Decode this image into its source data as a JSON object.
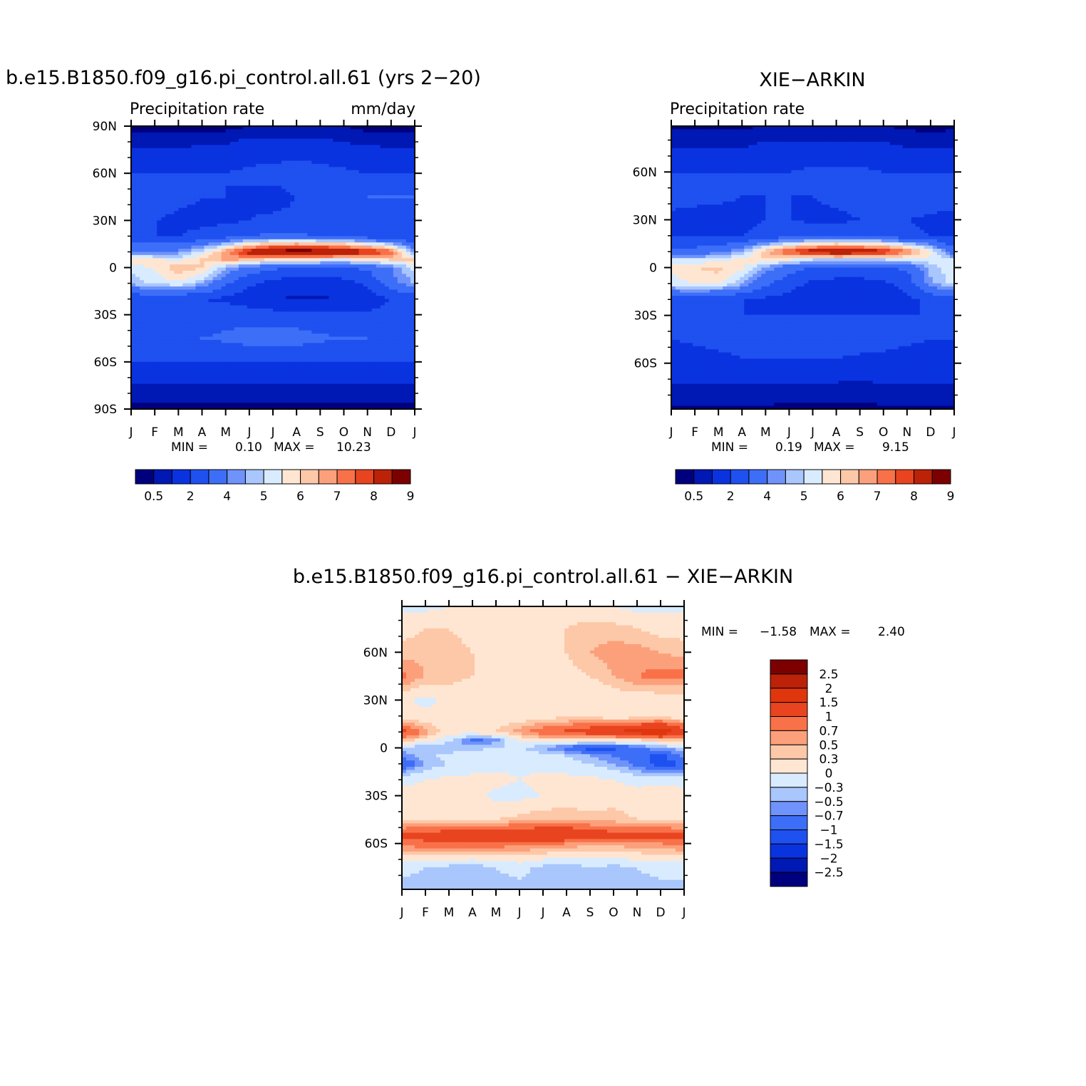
{
  "colors": {
    "abs_scale": [
      "#00007f",
      "#0018b4",
      "#0a33e0",
      "#1f50f0",
      "#3d6ef8",
      "#6f93fb",
      "#a9c6fd",
      "#d9ebff",
      "#ffe6d2",
      "#fdc8a8",
      "#fca07b",
      "#f97148",
      "#e84420",
      "#bb2208",
      "#7c0000"
    ],
    "diff_scale": [
      "#00007f",
      "#0018b4",
      "#0a33e0",
      "#1f50f0",
      "#3d6ef8",
      "#6f93fb",
      "#a9c6fd",
      "#d9ebff",
      "#ffe6d2",
      "#fdc8a8",
      "#fca07b",
      "#f97148",
      "#e84420",
      "#e0360e",
      "#bb2208",
      "#7c0000"
    ]
  },
  "chart_data": [
    {
      "type": "heatmap",
      "title": "b.e15.B1850.f09_g16.pi_control.all.61 (yrs 2−20)",
      "subtitle_left": "Precipitation  rate",
      "subtitle_right": "mm/day",
      "x_ticks": [
        "J",
        "F",
        "M",
        "A",
        "M",
        "J",
        "J",
        "A",
        "S",
        "O",
        "N",
        "D",
        "J"
      ],
      "y_ticks": [
        "90N",
        "60N",
        "30N",
        "0",
        "30S",
        "60S",
        "90S"
      ],
      "ylim": [
        -90,
        90
      ],
      "min_label": "MIN =",
      "min_value": "0.10",
      "max_label": "MAX =",
      "max_value": "10.23",
      "colorbar_labels": [
        "0.5",
        "2",
        "4",
        "5",
        "6",
        "7",
        "8",
        "9"
      ],
      "field": {
        "lat": [
          90,
          75,
          60,
          45,
          30,
          20,
          10,
          5,
          0,
          -10,
          -20,
          -30,
          -45,
          -60,
          -75,
          -90
        ],
        "months": [
          "J",
          "F",
          "M",
          "A",
          "M",
          "J",
          "J",
          "A",
          "S",
          "O",
          "N",
          "D",
          "J"
        ],
        "values": [
          [
            0.3,
            0.3,
            0.3,
            0.3,
            0.3,
            0.5,
            0.5,
            0.5,
            0.5,
            0.5,
            0.3,
            0.3,
            0.3
          ],
          [
            1.0,
            1.0,
            1.0,
            1.2,
            1.2,
            1.5,
            1.5,
            1.5,
            1.5,
            1.2,
            1.2,
            1.0,
            1.0
          ],
          [
            2.0,
            2.0,
            2.0,
            2.0,
            2.0,
            2.2,
            2.4,
            2.5,
            2.4,
            2.2,
            2.0,
            2.0,
            2.0
          ],
          [
            3.0,
            2.6,
            2.2,
            2.0,
            2.0,
            1.8,
            1.6,
            2.0,
            2.2,
            2.6,
            3.0,
            3.0,
            3.0
          ],
          [
            2.2,
            2.0,
            1.8,
            1.8,
            1.8,
            2.0,
            2.2,
            2.2,
            2.0,
            2.0,
            2.2,
            2.2,
            2.2
          ],
          [
            2.0,
            2.0,
            2.0,
            2.2,
            2.6,
            3.0,
            3.2,
            3.2,
            3.0,
            3.0,
            2.4,
            2.2,
            2.0
          ],
          [
            4.0,
            4.0,
            4.2,
            5.2,
            6.8,
            8.5,
            9.5,
            9.8,
            9.6,
            9.0,
            8.4,
            7.4,
            4.0
          ],
          [
            6.0,
            5.6,
            5.4,
            6.0,
            6.6,
            6.4,
            5.8,
            5.6,
            5.5,
            5.4,
            5.8,
            6.0,
            6.0
          ],
          [
            5.2,
            5.6,
            6.4,
            6.0,
            4.6,
            3.6,
            3.2,
            3.0,
            3.0,
            3.0,
            3.2,
            4.0,
            5.2
          ],
          [
            4.6,
            5.2,
            5.4,
            4.6,
            3.2,
            2.2,
            1.6,
            1.4,
            1.4,
            1.6,
            2.2,
            3.6,
            4.6
          ],
          [
            2.2,
            2.2,
            2.2,
            2.0,
            1.8,
            1.4,
            1.0,
            0.9,
            0.9,
            1.0,
            1.4,
            2.0,
            2.2
          ],
          [
            2.2,
            2.4,
            2.4,
            2.4,
            2.6,
            2.6,
            2.4,
            2.4,
            2.2,
            2.2,
            2.2,
            2.4,
            2.2
          ],
          [
            2.8,
            2.8,
            2.8,
            3.0,
            3.2,
            3.4,
            3.4,
            3.4,
            3.2,
            3.0,
            3.0,
            2.8,
            2.8
          ],
          [
            2.0,
            2.0,
            2.0,
            2.0,
            2.0,
            2.0,
            2.0,
            2.0,
            2.0,
            2.0,
            2.0,
            2.0,
            2.0
          ],
          [
            0.9,
            0.9,
            0.9,
            0.9,
            0.9,
            0.9,
            0.9,
            0.9,
            0.9,
            0.9,
            0.9,
            0.9,
            0.9
          ],
          [
            0.3,
            0.3,
            0.3,
            0.3,
            0.3,
            0.3,
            0.3,
            0.3,
            0.3,
            0.3,
            0.3,
            0.3,
            0.3
          ]
        ]
      }
    },
    {
      "type": "heatmap",
      "title": "XIE−ARKIN",
      "subtitle_left": "Precipitation  rate",
      "subtitle_right": "",
      "x_ticks": [
        "J",
        "F",
        "M",
        "A",
        "M",
        "J",
        "J",
        "A",
        "S",
        "O",
        "N",
        "D",
        "J"
      ],
      "y_ticks": [
        "60N",
        "30N",
        "0",
        "30S",
        "60S"
      ],
      "ylim": [
        -88.75,
        88.75
      ],
      "min_label": "MIN =",
      "min_value": "0.19",
      "max_label": "MAX =",
      "max_value": "9.15",
      "colorbar_labels": [
        "0.5",
        "2",
        "4",
        "5",
        "6",
        "7",
        "8",
        "9"
      ],
      "field": {
        "lat": [
          88.75,
          75,
          60,
          45,
          30,
          20,
          10,
          5,
          0,
          -10,
          -20,
          -30,
          -45,
          -60,
          -75,
          -88.75
        ],
        "months": [
          "J",
          "F",
          "M",
          "A",
          "M",
          "J",
          "J",
          "A",
          "S",
          "O",
          "N",
          "D",
          "J"
        ],
        "values": [
          [
            0.4,
            0.4,
            0.4,
            0.4,
            0.5,
            0.5,
            0.5,
            0.5,
            0.5,
            0.5,
            0.4,
            0.3,
            0.4
          ],
          [
            1.0,
            1.0,
            1.0,
            1.0,
            1.2,
            1.2,
            1.2,
            1.2,
            1.2,
            1.2,
            1.0,
            1.0,
            1.0
          ],
          [
            2.0,
            2.0,
            2.0,
            2.0,
            2.0,
            2.0,
            2.2,
            2.2,
            2.2,
            2.0,
            2.0,
            2.0,
            2.0
          ],
          [
            2.6,
            2.4,
            2.2,
            2.0,
            2.0,
            2.0,
            2.0,
            2.2,
            2.4,
            2.6,
            2.8,
            2.6,
            2.6
          ],
          [
            1.6,
            1.5,
            1.6,
            1.8,
            2.0,
            2.0,
            1.8,
            1.8,
            2.0,
            2.0,
            2.0,
            1.8,
            1.6
          ],
          [
            1.8,
            1.8,
            1.8,
            2.0,
            2.2,
            2.6,
            2.8,
            2.8,
            2.6,
            2.6,
            2.2,
            2.0,
            1.8
          ],
          [
            3.4,
            3.4,
            3.8,
            4.6,
            6.4,
            7.8,
            8.6,
            9.0,
            8.8,
            8.4,
            7.2,
            5.6,
            3.4
          ],
          [
            5.0,
            5.0,
            5.2,
            5.8,
            6.0,
            5.6,
            5.0,
            5.0,
            5.0,
            5.0,
            5.2,
            5.4,
            5.0
          ],
          [
            5.6,
            6.0,
            6.2,
            5.6,
            4.4,
            3.4,
            3.0,
            2.8,
            2.8,
            2.8,
            3.2,
            4.6,
            5.6
          ],
          [
            5.2,
            5.6,
            5.6,
            4.6,
            3.2,
            2.4,
            1.8,
            1.6,
            1.6,
            1.8,
            2.4,
            4.4,
            5.2
          ],
          [
            2.6,
            2.4,
            2.2,
            2.0,
            1.8,
            1.6,
            1.2,
            1.1,
            1.2,
            1.4,
            1.8,
            2.2,
            2.6
          ],
          [
            2.0,
            2.0,
            2.0,
            2.0,
            2.0,
            2.0,
            2.0,
            2.0,
            2.0,
            2.0,
            2.0,
            2.0,
            2.0
          ],
          [
            2.0,
            2.2,
            2.4,
            2.6,
            2.8,
            3.0,
            3.0,
            2.8,
            2.6,
            2.4,
            2.2,
            2.0,
            2.0
          ],
          [
            1.4,
            1.4,
            1.6,
            1.8,
            1.8,
            1.8,
            1.8,
            1.8,
            1.6,
            1.6,
            1.4,
            1.4,
            1.4
          ],
          [
            0.9,
            0.9,
            0.9,
            0.9,
            0.9,
            0.8,
            0.8,
            0.8,
            0.8,
            0.9,
            0.9,
            0.9,
            0.9
          ],
          [
            0.4,
            0.4,
            0.4,
            0.4,
            0.4,
            0.4,
            0.4,
            0.4,
            0.4,
            0.4,
            0.4,
            0.4,
            0.4
          ]
        ]
      }
    },
    {
      "type": "heatmap",
      "title": "b.e15.B1850.f09_g16.pi_control.all.61  −  XIE−ARKIN",
      "x_ticks": [
        "J",
        "F",
        "M",
        "A",
        "M",
        "J",
        "J",
        "A",
        "S",
        "O",
        "N",
        "D",
        "J"
      ],
      "y_ticks": [
        "60N",
        "30N",
        "0",
        "30S",
        "60S"
      ],
      "ylim": [
        -88.75,
        88.75
      ],
      "min_label": "MIN =",
      "min_value": "−1.58",
      "max_label": "MAX =",
      "max_value": "2.40",
      "colorbar_labels": [
        "2.5",
        "2",
        "1.5",
        "1",
        "0.7",
        "0.5",
        "0.3",
        "0",
        "−0.3",
        "−0.5",
        "−0.7",
        "−1",
        "−1.5",
        "−2",
        "−2.5"
      ],
      "field": {
        "lat": [
          88.75,
          75,
          60,
          45,
          30,
          20,
          10,
          5,
          0,
          -5,
          -10,
          -20,
          -30,
          -45,
          -55,
          -60,
          -75,
          -88.75
        ],
        "months": [
          "J",
          "F",
          "M",
          "A",
          "M",
          "J",
          "J",
          "A",
          "S",
          "O",
          "N",
          "D",
          "J"
        ],
        "values": [
          [
            -0.1,
            -0.1,
            0.0,
            0.1,
            0.1,
            0.2,
            0.2,
            0.2,
            0.1,
            0.0,
            -0.1,
            -0.1,
            -0.1
          ],
          [
            0.2,
            0.3,
            0.3,
            0.2,
            0.2,
            0.3,
            0.3,
            0.3,
            0.4,
            0.4,
            0.3,
            0.2,
            0.2
          ],
          [
            0.4,
            0.4,
            0.4,
            0.3,
            0.2,
            0.2,
            0.2,
            0.3,
            0.5,
            0.6,
            0.6,
            0.5,
            0.4
          ],
          [
            0.8,
            0.5,
            0.4,
            0.3,
            0.1,
            0.1,
            0.1,
            0.2,
            0.3,
            0.5,
            0.7,
            0.8,
            0.8
          ],
          [
            0.1,
            -0.1,
            0.1,
            0.1,
            0.0,
            0.1,
            0.1,
            0.1,
            0.0,
            0.1,
            0.1,
            0.1,
            0.1
          ],
          [
            0.1,
            0.1,
            0.1,
            0.1,
            0.1,
            0.1,
            0.2,
            0.2,
            0.2,
            0.1,
            0.1,
            0.1,
            0.1
          ],
          [
            1.2,
            0.6,
            0.1,
            0.2,
            0.3,
            0.6,
            0.9,
            1.1,
            1.3,
            1.5,
            1.8,
            2.0,
            1.2
          ],
          [
            0.5,
            0.2,
            -0.2,
            -0.8,
            -0.6,
            0.1,
            0.3,
            0.2,
            0.1,
            0.2,
            0.3,
            0.4,
            0.5
          ],
          [
            -0.4,
            -0.5,
            -0.5,
            -0.4,
            -0.3,
            -0.3,
            -0.5,
            -0.8,
            -1.2,
            -1.1,
            -0.8,
            -0.5,
            -0.4
          ],
          [
            -0.6,
            -0.4,
            -0.2,
            -0.1,
            -0.1,
            -0.1,
            -0.2,
            -0.3,
            -0.5,
            -0.7,
            -0.9,
            -1.1,
            -0.6
          ],
          [
            -1.0,
            -0.5,
            -0.3,
            -0.2,
            -0.1,
            -0.1,
            -0.1,
            -0.2,
            -0.3,
            -0.5,
            -0.8,
            -1.2,
            -1.0
          ],
          [
            -0.1,
            0.0,
            0.1,
            0.1,
            0.1,
            0.0,
            0.1,
            0.1,
            0.1,
            0.0,
            -0.1,
            -0.1,
            -0.1
          ],
          [
            0.1,
            0.2,
            0.2,
            0.1,
            -0.1,
            -0.1,
            0.0,
            0.1,
            0.1,
            0.2,
            0.1,
            0.2,
            0.1
          ],
          [
            0.2,
            0.3,
            0.3,
            0.3,
            0.3,
            0.4,
            0.5,
            0.5,
            0.4,
            0.4,
            0.3,
            0.3,
            0.2
          ],
          [
            1.1,
            1.2,
            1.3,
            1.4,
            1.4,
            1.4,
            1.5,
            1.5,
            1.3,
            1.2,
            1.1,
            1.1,
            1.1
          ],
          [
            0.8,
            0.9,
            1.0,
            1.0,
            0.9,
            0.8,
            0.8,
            0.7,
            0.6,
            0.6,
            0.7,
            0.7,
            0.8
          ],
          [
            -0.2,
            -0.3,
            -0.4,
            -0.5,
            -0.3,
            -0.2,
            -0.4,
            -0.5,
            -0.3,
            -0.4,
            -0.3,
            -0.2,
            -0.2
          ],
          [
            -0.4,
            -0.4,
            -0.4,
            -0.4,
            -0.4,
            -0.4,
            -0.4,
            -0.4,
            -0.4,
            -0.4,
            -0.4,
            -0.4,
            -0.4
          ]
        ]
      }
    }
  ]
}
